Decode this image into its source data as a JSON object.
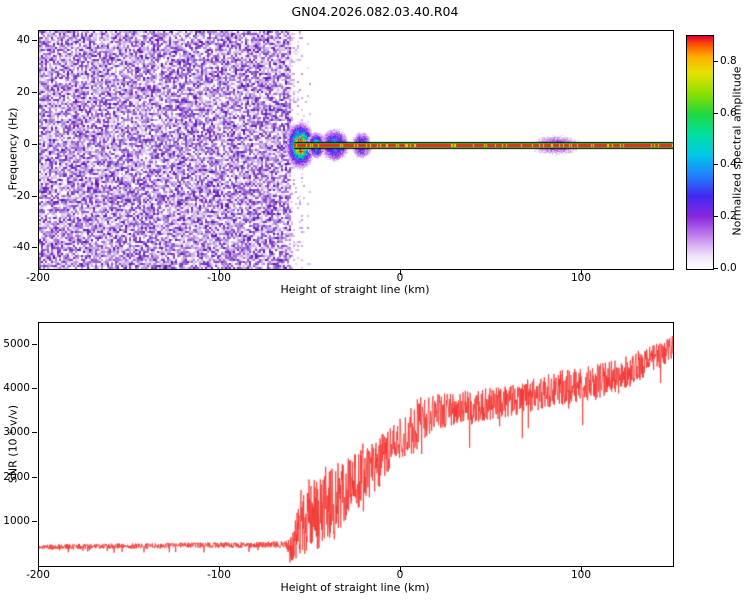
{
  "title": "GN04.2026.082.03.40.R04",
  "chart_data": [
    {
      "type": "heatmap",
      "panel": "spectrogram",
      "xlabel": "Height of straight line (km)",
      "ylabel": "Frequency (Hz)",
      "xlim": [
        -200,
        150
      ],
      "ylim": [
        -48,
        44
      ],
      "xticks": [
        -200,
        -100,
        0,
        100
      ],
      "yticks": [
        -40,
        -20,
        0,
        20,
        40
      ],
      "grid": false,
      "noise_region": {
        "x_range": [
          -200,
          -61
        ],
        "y_range": [
          -48,
          44
        ],
        "description": "dense speckled broadband noise, white to dark purple",
        "light_color": "#efe2fb",
        "dark_color": "#5a10b4",
        "white_fraction": 0.22
      },
      "signal_ridge": {
        "x_range": [
          -59,
          150
        ],
        "y_center": 0,
        "core_color": "#ee2918",
        "fringe_color": "#35c83c",
        "edge_color": "#000000",
        "hot_color": "#ffd000"
      },
      "blobs": [
        {
          "x": -56,
          "x_sigma": 3.5,
          "y": 0,
          "y_sigma_hz": 4.0,
          "peak": 0.95
        },
        {
          "x": -47,
          "x_sigma": 2.5,
          "y": 0,
          "y_sigma_hz": 2.5,
          "peak": 0.55
        },
        {
          "x": -37,
          "x_sigma": 4.0,
          "y": 0,
          "y_sigma_hz": 3.2,
          "peak": 0.45
        },
        {
          "x": -22,
          "x_sigma": 3.0,
          "y": 0,
          "y_sigma_hz": 2.8,
          "peak": 0.35
        },
        {
          "x": 85,
          "x_sigma": 9.0,
          "y": 0,
          "y_sigma_hz": 2.4,
          "peak": 0.2
        }
      ],
      "colorbar": {
        "label": "Normalized spectral amplitude",
        "tick_labels": [
          "0.0",
          "0.2",
          "0.4",
          "0.6",
          "0.8"
        ],
        "tick_values": [
          0,
          0.2,
          0.4,
          0.6,
          0.8
        ],
        "vmin": 0,
        "vmax": 0.9,
        "stops": [
          [
            0.0,
            "#ffffff"
          ],
          [
            0.05,
            "#f0e2fa"
          ],
          [
            0.12,
            "#c788ee"
          ],
          [
            0.2,
            "#8a28e0"
          ],
          [
            0.28,
            "#4328f0"
          ],
          [
            0.36,
            "#2080ff"
          ],
          [
            0.44,
            "#00c8e8"
          ],
          [
            0.52,
            "#00e0a0"
          ],
          [
            0.6,
            "#20d840"
          ],
          [
            0.68,
            "#90e000"
          ],
          [
            0.76,
            "#e8e000"
          ],
          [
            0.82,
            "#ffb000"
          ],
          [
            0.87,
            "#ff5000"
          ],
          [
            0.9,
            "#e00038"
          ]
        ]
      }
    },
    {
      "type": "line",
      "panel": "snr",
      "xlabel": "Height of straight line (km)",
      "ylabel": "SNR (10 * v/v)",
      "xlim": [
        -200,
        150
      ],
      "ylim": [
        0,
        5500
      ],
      "xticks": [
        -200,
        -100,
        0,
        100
      ],
      "yticks": [
        1000,
        2000,
        3000,
        4000,
        5000
      ],
      "grid": false,
      "series": [
        {
          "name": "SNR",
          "color": "#f23430",
          "envelope_format": [
            "height_km",
            "mean_snr",
            "noise_halfwidth"
          ],
          "envelope": [
            [
              -200,
              430,
              60
            ],
            [
              -180,
              440,
              60
            ],
            [
              -160,
              450,
              60
            ],
            [
              -140,
              455,
              60
            ],
            [
              -120,
              465,
              65
            ],
            [
              -100,
              470,
              65
            ],
            [
              -80,
              480,
              65
            ],
            [
              -70,
              490,
              70
            ],
            [
              -64,
              480,
              90
            ],
            [
              -61,
              320,
              320
            ],
            [
              -58,
              750,
              700
            ],
            [
              -54,
              1050,
              850
            ],
            [
              -50,
              1250,
              820
            ],
            [
              -46,
              1100,
              780
            ],
            [
              -42,
              1500,
              820
            ],
            [
              -38,
              1350,
              850
            ],
            [
              -34,
              1600,
              780
            ],
            [
              -30,
              1750,
              760
            ],
            [
              -26,
              1900,
              720
            ],
            [
              -22,
              2100,
              700
            ],
            [
              -18,
              2150,
              620
            ],
            [
              -14,
              2300,
              560
            ],
            [
              -10,
              2500,
              520
            ],
            [
              -5,
              2700,
              480
            ],
            [
              0,
              2900,
              460
            ],
            [
              5,
              3050,
              500
            ],
            [
              8,
              3200,
              800
            ],
            [
              12,
              3300,
              460
            ],
            [
              16,
              3400,
              430
            ],
            [
              20,
              3500,
              400
            ],
            [
              30,
              3550,
              390
            ],
            [
              40,
              3600,
              390
            ],
            [
              50,
              3650,
              390
            ],
            [
              60,
              3750,
              380
            ],
            [
              70,
              3850,
              380
            ],
            [
              80,
              3950,
              380
            ],
            [
              90,
              4050,
              400
            ],
            [
              100,
              4100,
              390
            ],
            [
              110,
              4200,
              390
            ],
            [
              120,
              4300,
              390
            ],
            [
              130,
              4500,
              360
            ],
            [
              140,
              4700,
              330
            ],
            [
              150,
              4950,
              290
            ]
          ]
        }
      ]
    }
  ]
}
